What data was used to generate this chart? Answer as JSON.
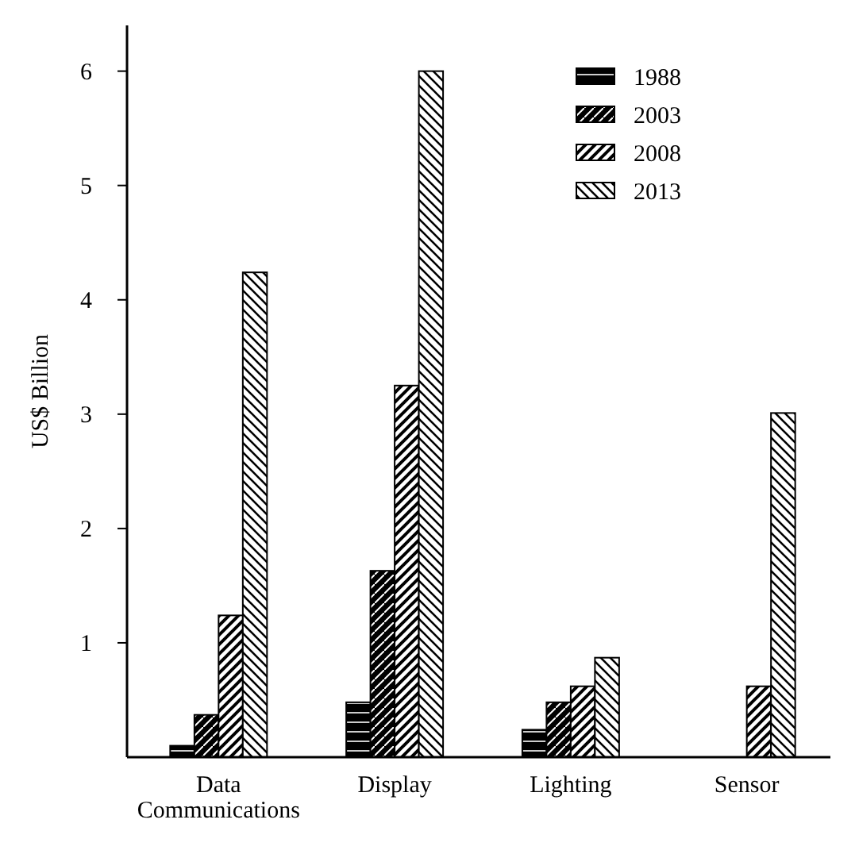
{
  "chart_data": {
    "type": "bar",
    "ylabel": "US$ Billion",
    "categories": [
      "Data Communications",
      "Display",
      "Lighting",
      "Sensor"
    ],
    "series": [
      {
        "name": "1988",
        "color": "#000000",
        "values": [
          0.1,
          0.48,
          0.24,
          null
        ]
      },
      {
        "name": "2003",
        "color": "#000000",
        "values": [
          0.37,
          1.63,
          0.48,
          null
        ]
      },
      {
        "name": "2008",
        "color": "#000000",
        "values": [
          1.24,
          3.25,
          0.62,
          0.62
        ]
      },
      {
        "name": "2013",
        "color": "#000000",
        "values": [
          4.24,
          6.0,
          0.87,
          3.01
        ]
      }
    ],
    "ylim": [
      0,
      6.4
    ],
    "yticks": [
      1,
      2,
      3,
      4,
      5,
      6
    ],
    "grid": false,
    "legend": "top right"
  }
}
